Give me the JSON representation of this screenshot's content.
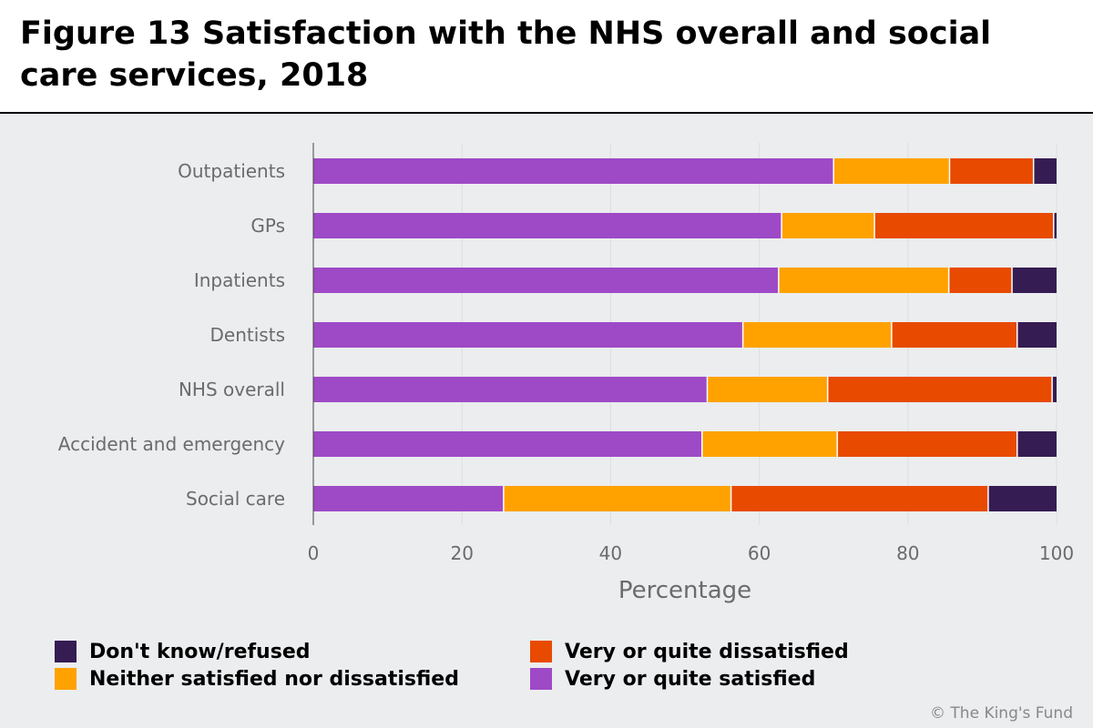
{
  "chart_data": {
    "type": "bar",
    "orientation": "horizontal",
    "stacked": true,
    "title": "Figure 13 Satisfaction with the NHS overall and social care services, 2018",
    "xlabel": "Percentage",
    "ylabel": "",
    "xlim": [
      0,
      100
    ],
    "xticks": [
      "0",
      "20",
      "40",
      "60",
      "80",
      "100"
    ],
    "categories": [
      "Outpatients",
      "GPs",
      "Inpatients",
      "Dentists",
      "NHS overall",
      "Accident and emergency",
      "Social care"
    ],
    "series": [
      {
        "name": "Very or quite satisfied",
        "color": "#9e4ac6",
        "values": [
          70,
          63,
          62.6,
          57.8,
          53,
          52.3,
          25.6
        ]
      },
      {
        "name": "Neither satisfied nor dissatisfied",
        "color": "#ffa200",
        "values": [
          15.6,
          12.5,
          22.9,
          20,
          16.2,
          18.2,
          30.6
        ]
      },
      {
        "name": "Very or quite dissatisfied",
        "color": "#e84a00",
        "values": [
          11.3,
          24.1,
          8.5,
          16.9,
          30.2,
          24.2,
          34.6
        ]
      },
      {
        "name": "Don't know/refused",
        "color": "#351c52",
        "values": [
          3.1,
          0.4,
          6,
          5.3,
          0.6,
          5.3,
          9.2
        ]
      }
    ],
    "grid": true,
    "legend_position": "bottom"
  },
  "legend": {
    "items": [
      {
        "label": "Don't know/refused",
        "color": "#351c52"
      },
      {
        "label": "Very or quite dissatisfied",
        "color": "#e84a00"
      },
      {
        "label": "Neither satisfied nor dissatisfied",
        "color": "#ffa200"
      },
      {
        "label": "Very or quite satisfied",
        "color": "#9e4ac6"
      }
    ]
  },
  "footer": {
    "copyright": "© The King's Fund"
  }
}
